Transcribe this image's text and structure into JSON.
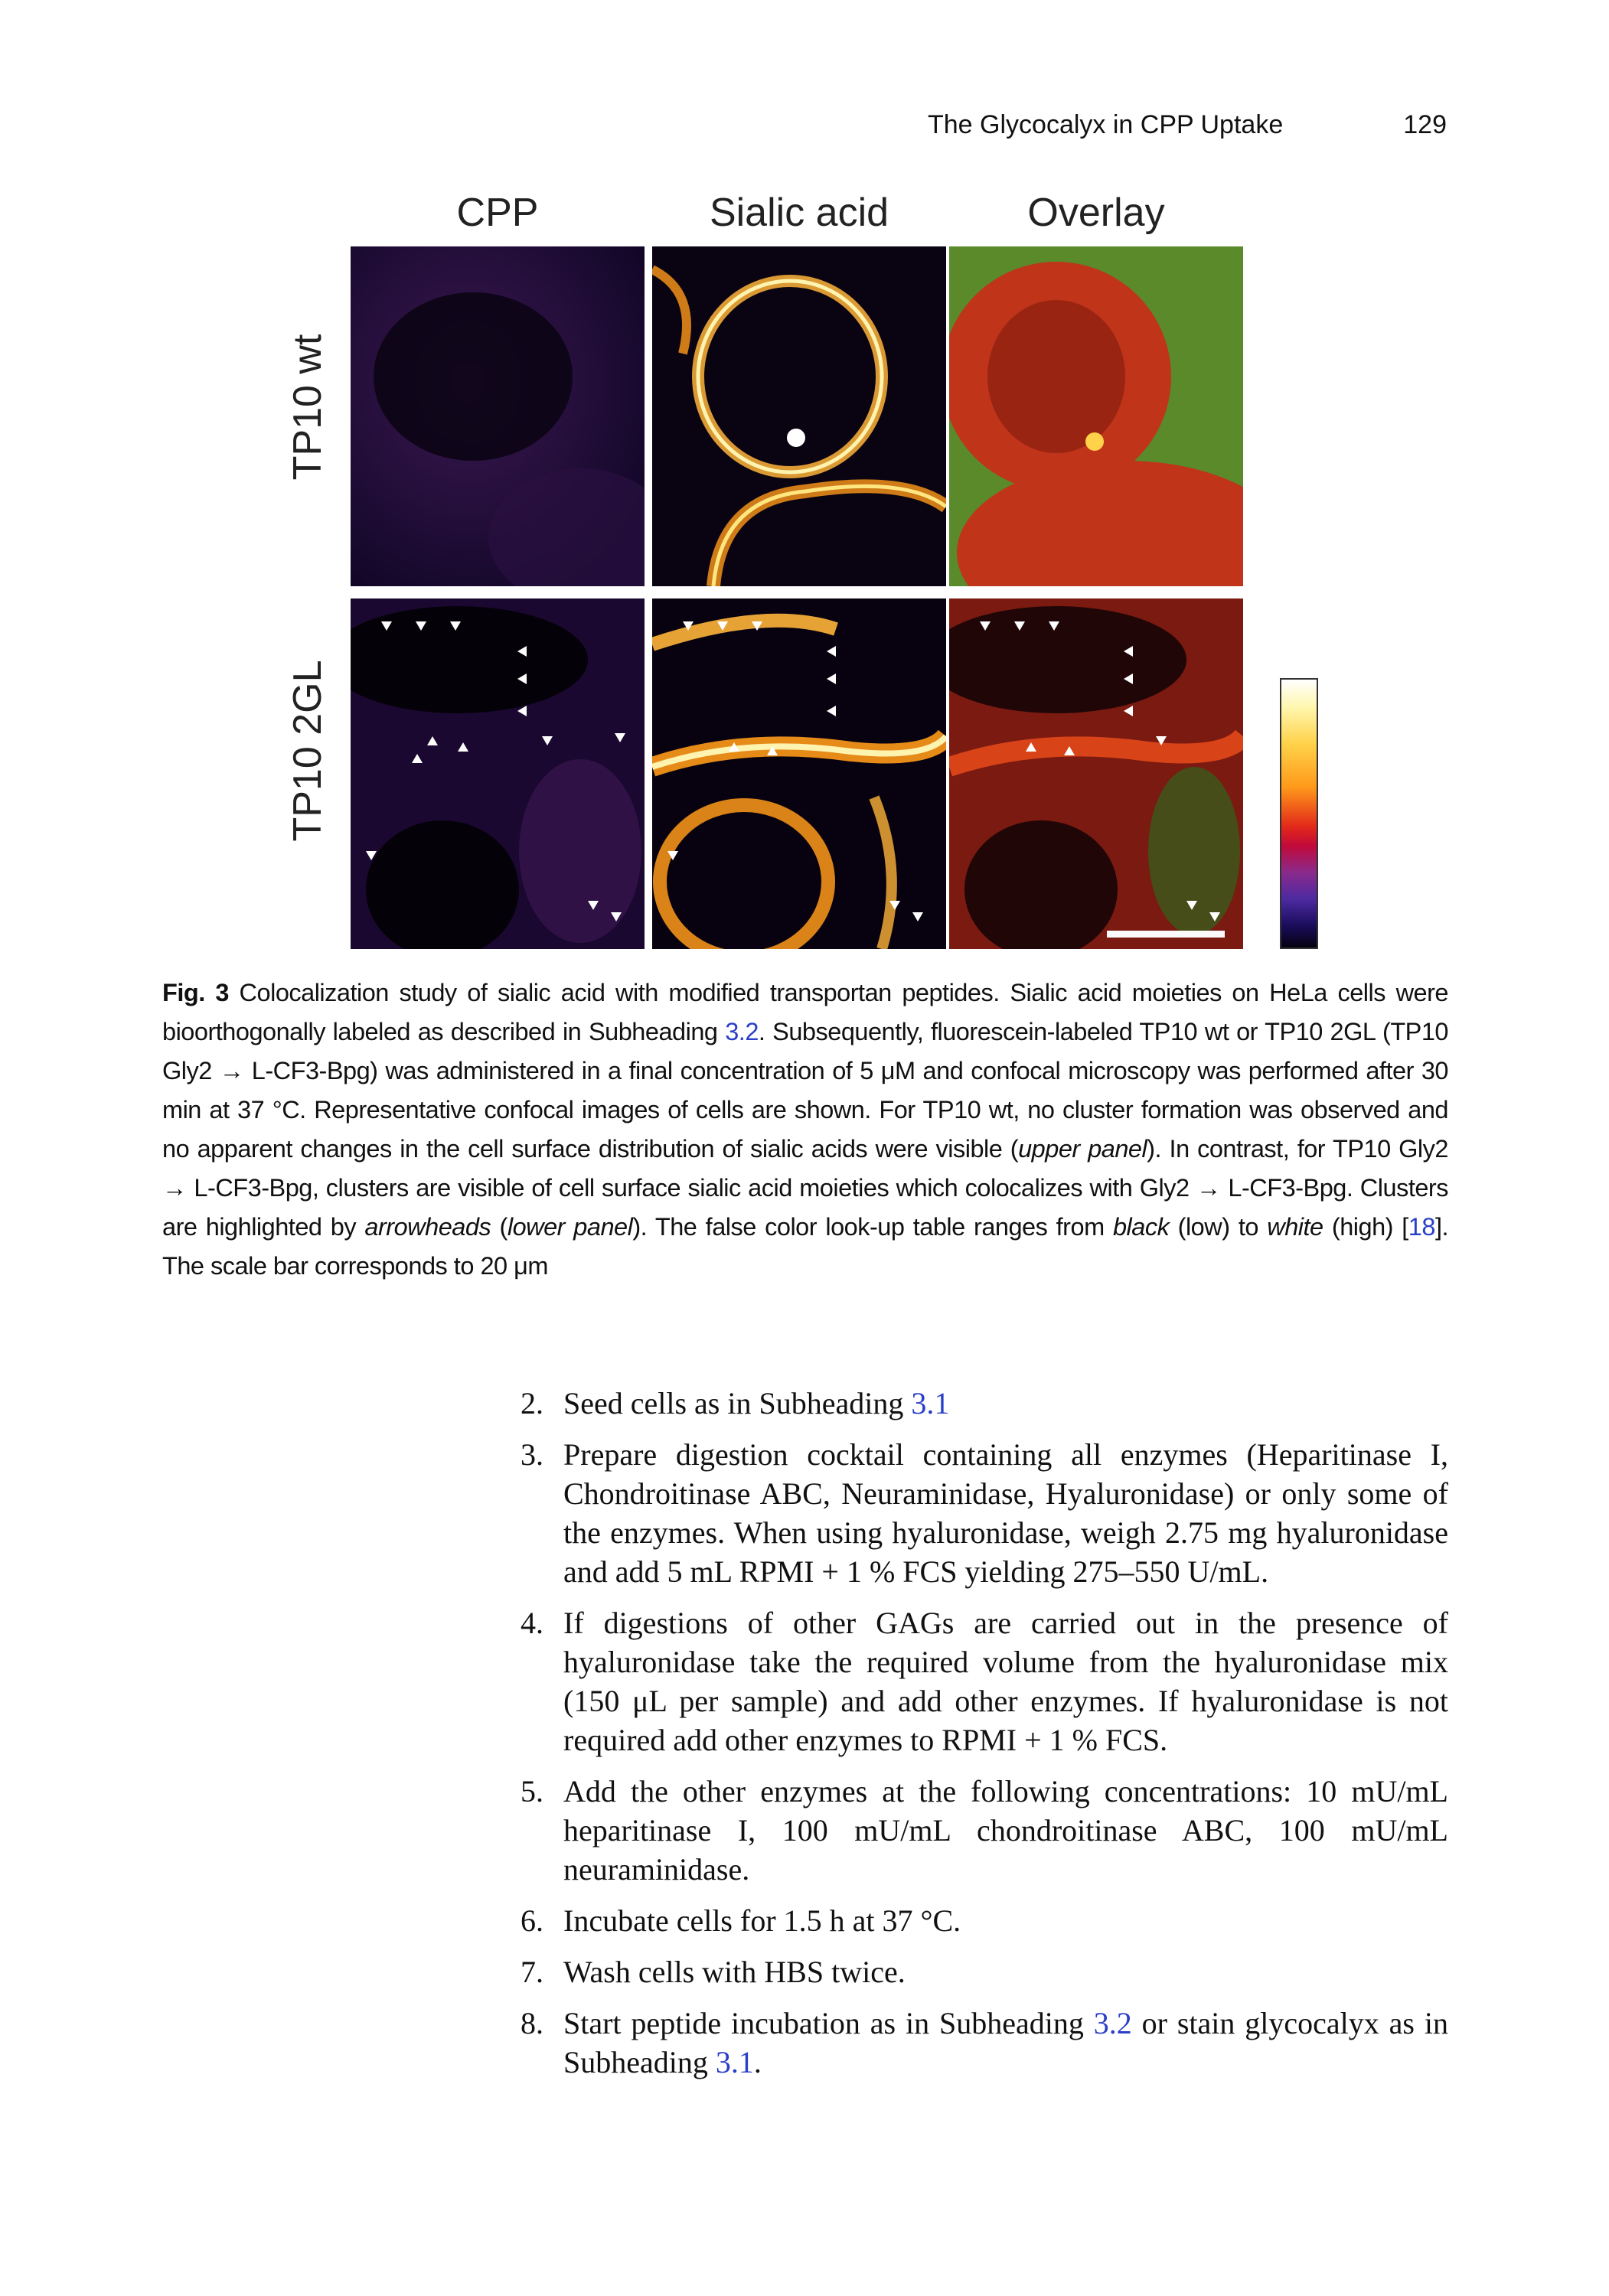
{
  "running_head": {
    "title": "The Glycocalyx in CPP Uptake",
    "page_number": "129"
  },
  "figure": {
    "column_labels": [
      "CPP",
      "Sialic acid",
      "Overlay"
    ],
    "row_labels": [
      "TP10 wt",
      "TP10 2GL"
    ]
  },
  "caption": {
    "fig_number": "Fig. 3",
    "p1": "Colocalization study of sialic acid with modified transportan peptides. Sialic acid moieties on HeLa cells were bioorthogonally labeled as described in Subheading ",
    "ref1": "3.2",
    "p2": ". Subsequently, fluorescein-labeled TP10 wt or TP10 2GL (TP10 Gly2 → L-CF3-Bpg) was administered in a final concentration of 5 μM and confocal microscopy was performed after 30 min at 37 °C. Representative confocal images of cells are shown. For TP10 wt, no cluster formation was observed and no apparent changes in the cell surface distribution of sialic acids were visible (",
    "i1": "upper panel",
    "p3": "). In contrast, for TP10 Gly2 → L-CF3-Bpg, clusters are visible of cell surface sialic acid moieties which colocalizes with Gly2 → L-CF3-Bpg. Clusters are highlighted by ",
    "i2": "arrowheads",
    "p4": " (",
    "i3": "lower panel",
    "p5": "). The false color look-up table ranges from ",
    "i4": "black",
    "p6": " (low) to ",
    "i5": "white",
    "p7": " (high) [",
    "ref2": "18",
    "p8": "]. The scale bar corresponds to 20 μm"
  },
  "steps": [
    {
      "num": "2.",
      "text": "Seed cells as in Subheading ",
      "ref": "3.1",
      "after": ""
    },
    {
      "num": "3.",
      "text": "Prepare digestion cocktail containing all enzymes (Heparitinase I, Chondroitinase ABC, Neuraminidase, Hyaluronidase) or only some of the enzymes. When using hyaluronidase, weigh 2.75 mg hyaluronidase and add 5 mL RPMI + 1 % FCS yielding 275–550 U/mL."
    },
    {
      "num": "4.",
      "text": "If digestions of other GAGs are carried out in the presence of hyaluronidase take the required volume from the hyaluronidase mix (150 μL per sample) and add other enzymes. If hyaluronidase is not required add other enzymes to RPMI + 1 % FCS."
    },
    {
      "num": "5.",
      "text": "Add the other enzymes at the following concentrations: 10 mU/mL heparitinase I, 100 mU/mL chondroitinase ABC, 100 mU/mL neuraminidase."
    },
    {
      "num": "6.",
      "text": "Incubate cells for 1.5 h at 37 °C."
    },
    {
      "num": "7.",
      "text": "Wash cells with HBS twice."
    },
    {
      "num": "8.",
      "text": "Start peptide incubation as in Subheading ",
      "ref": "3.2",
      "after": " or stain glycocalyx as in Subheading ",
      "ref2": "3.1",
      "after2": "."
    }
  ]
}
